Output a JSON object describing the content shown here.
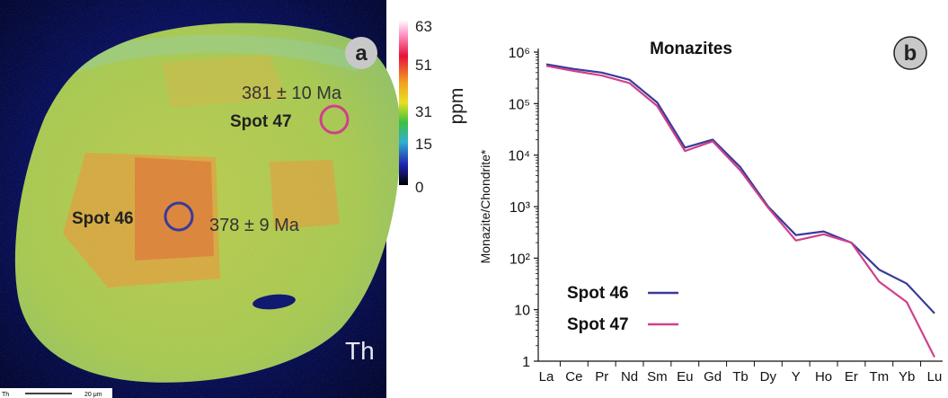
{
  "map_panel": {
    "panel_letter": "a",
    "element_label": "Th",
    "scale_bar_prefix": "Th",
    "scale_bar_text": "20 μm",
    "colorbar_ticks": [
      "63",
      "51",
      "31",
      "15",
      "0"
    ],
    "colorbar_unit": "ppm",
    "spot46": {
      "label": "Spot 46",
      "age": "378 ± 9 Ma",
      "color": "#3a3a9a"
    },
    "spot47": {
      "label": "Spot 47",
      "age": "381 ± 10 Ma",
      "color": "#d0408a"
    }
  },
  "chart_data": {
    "type": "line",
    "panel_letter": "b",
    "title": "Monazites",
    "ylabel": "Monazite/Chondrite*",
    "xlabel": "",
    "scale": "log",
    "categories": [
      "La",
      "Ce",
      "Pr",
      "Nd",
      "Sm",
      "Eu",
      "Gd",
      "Tb",
      "Dy",
      "Y",
      "Ho",
      "Er",
      "Tm",
      "Yb",
      "Lu"
    ],
    "y_tick_labels": [
      "1",
      "10",
      "10²",
      "10³",
      "10⁴",
      "10⁵",
      "10⁶"
    ],
    "ylim": [
      1,
      1000000
    ],
    "legend_position": "bottom-left",
    "series": [
      {
        "name": "Spot 46",
        "color": "#3a3a9a",
        "values": [
          580000,
          470000,
          400000,
          290000,
          105000,
          14000,
          20000,
          5800,
          1000,
          280,
          330,
          200,
          60,
          32,
          8.5
        ]
      },
      {
        "name": "Spot 47",
        "color": "#d0408a",
        "values": [
          540000,
          430000,
          350000,
          250000,
          90000,
          12000,
          18500,
          5000,
          950,
          220,
          290,
          200,
          35,
          14,
          1.2
        ]
      }
    ]
  }
}
